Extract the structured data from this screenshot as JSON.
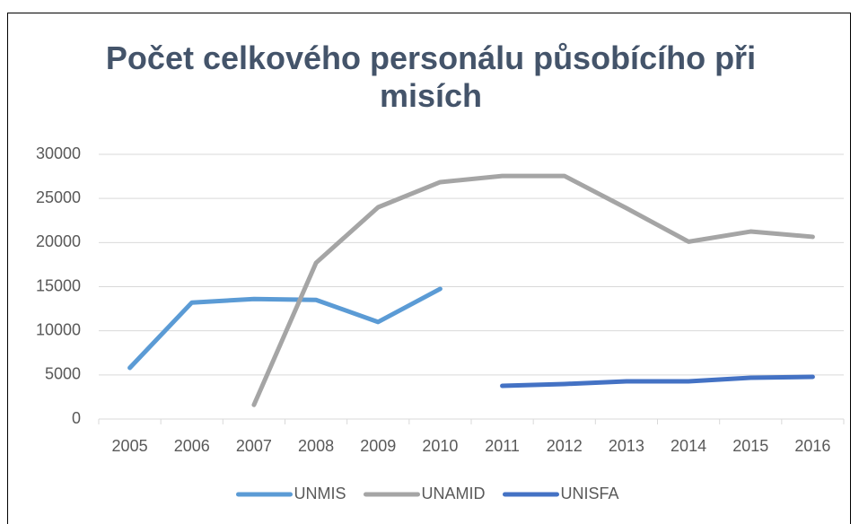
{
  "chart_data": {
    "type": "line",
    "title": "Počet celkového personálu působícího při misích",
    "categories": [
      "2005",
      "2006",
      "2007",
      "2008",
      "2009",
      "2010",
      "2011",
      "2012",
      "2013",
      "2014",
      "2015",
      "2016"
    ],
    "series": [
      {
        "name": "UNMIS",
        "color": "#5b9bd5",
        "values": [
          5800,
          13200,
          13600,
          13500,
          11000,
          14750,
          null,
          null,
          null,
          null,
          null,
          null
        ]
      },
      {
        "name": "UNAMID",
        "color": "#a5a5a5",
        "values": [
          null,
          null,
          1600,
          17700,
          24000,
          26850,
          27550,
          27550,
          23900,
          20100,
          21250,
          20650
        ]
      },
      {
        "name": "UNISFA",
        "color": "#4472c4",
        "values": [
          null,
          null,
          null,
          null,
          null,
          null,
          3760,
          3970,
          4270,
          4270,
          4680,
          4780
        ]
      }
    ],
    "ylim": [
      0,
      30000
    ],
    "yticks": [
      0,
      5000,
      10000,
      15000,
      20000,
      25000,
      30000
    ],
    "grid": true,
    "legend": "bottom"
  }
}
